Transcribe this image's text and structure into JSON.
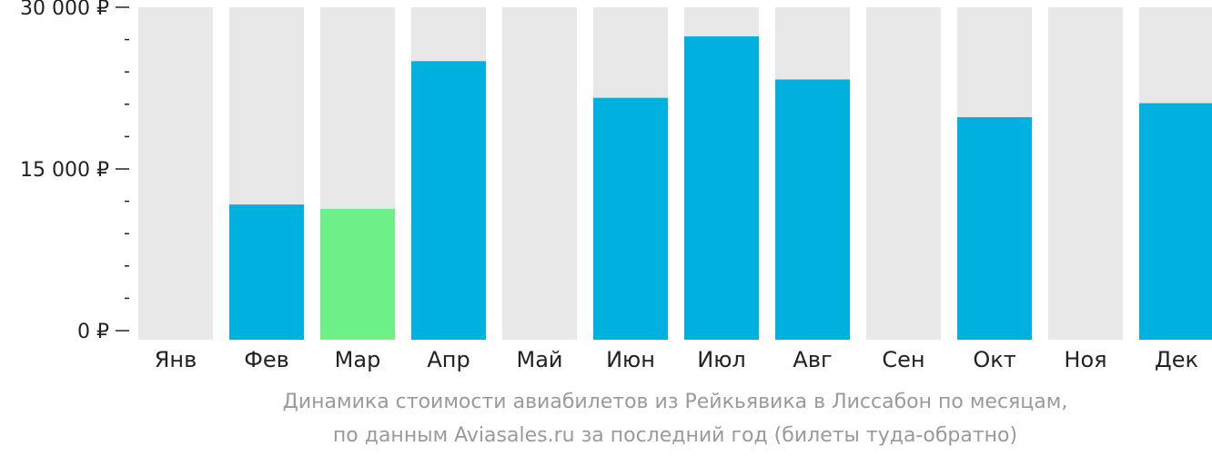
{
  "chart_data": {
    "type": "bar",
    "categories": [
      "Янв",
      "Фев",
      "Мар",
      "Апр",
      "Май",
      "Июн",
      "Июл",
      "Авг",
      "Сен",
      "Окт",
      "Ноя",
      "Дек"
    ],
    "values": [
      null,
      11700,
      11300,
      25000,
      null,
      21600,
      27300,
      23300,
      null,
      19800,
      null,
      21100
    ],
    "highlight_category": "Мар",
    "ylim": [
      0,
      30000
    ],
    "yticks": [
      {
        "value": 0,
        "label": "0 ₽"
      },
      {
        "value": 15000,
        "label": "15 000 ₽"
      },
      {
        "value": 30000,
        "label": "30 000 ₽"
      }
    ],
    "minor_tick_step": 3000,
    "colors": {
      "bar": "#00b0de",
      "highlight": "#6cf087",
      "background_bar": "#e8e8e8",
      "axis": "#222222"
    }
  },
  "caption": {
    "line1": "Динамика стоимости авиабилетов из Рейкьявика в Лиссабон по месяцам,",
    "line2": "по данным Aviasales.ru за последний год (билеты туда-обратно)"
  }
}
